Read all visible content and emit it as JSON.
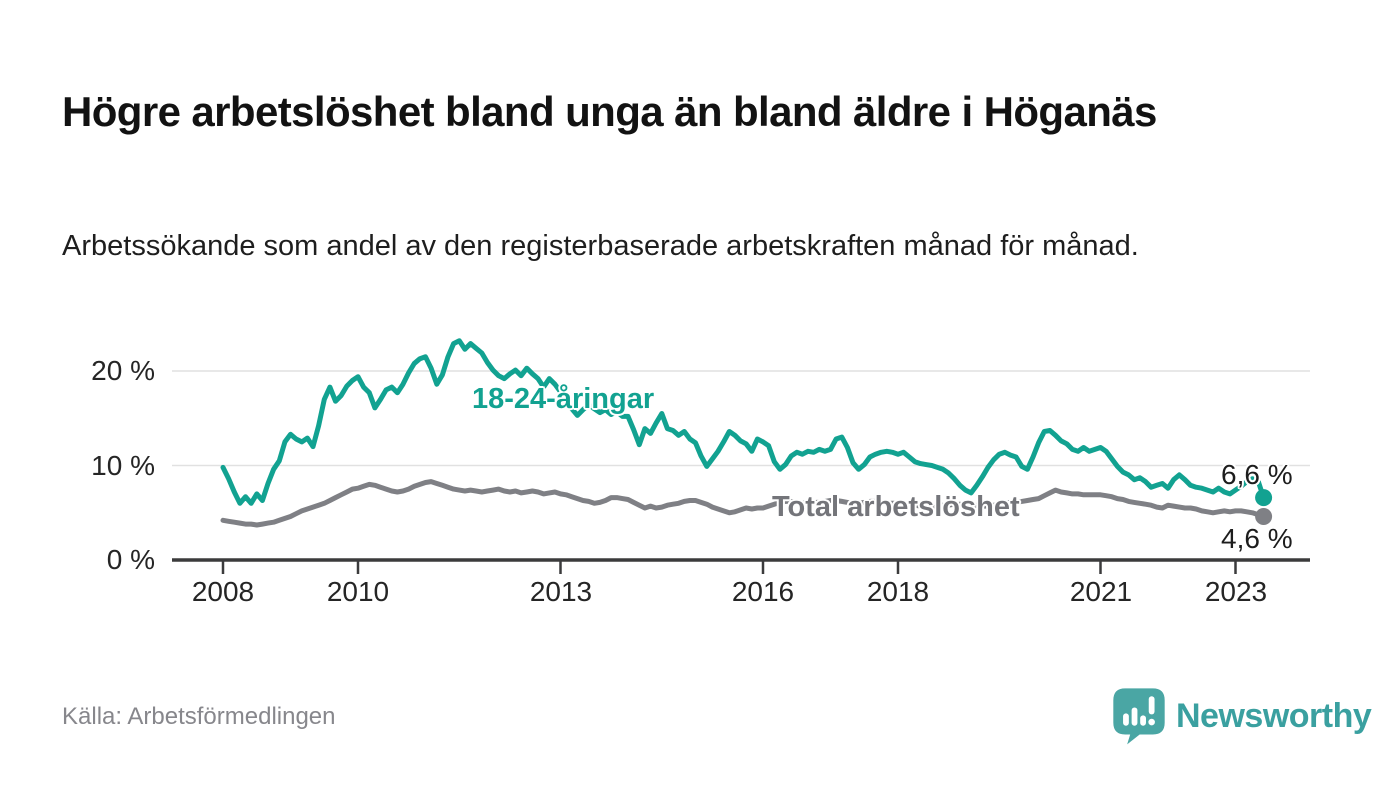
{
  "page": {
    "title": "Högre arbetslöshet bland unga än bland äldre i Höganäs",
    "subtitle": "Arbetssökande som andel av den registerbaserade arbetskraften månad för månad.",
    "source": "Källa: Arbetsförmedlingen",
    "brand": {
      "name": "Newsworthy",
      "icon": "speech-bubble-bar-chart-icon",
      "text_color": "#3aa0a0",
      "icon_color": "#4aa6a4"
    }
  },
  "chart_data": {
    "type": "line",
    "title": "Högre arbetslöshet bland unga än bland äldre i Höganäs",
    "subtitle": "Arbetssökande som andel av den registerbaserade arbetskraften månad för månad.",
    "x_unit": "month",
    "x_start": "2008-01",
    "x_end": "2023-06",
    "y_unit": "%",
    "ylim": [
      0,
      24
    ],
    "grid": "horizontal",
    "legend_position": "inline-labels",
    "y_ticks": [
      {
        "value": 0,
        "label": "0 %"
      },
      {
        "value": 10,
        "label": "10 %"
      },
      {
        "value": 20,
        "label": "20 %"
      }
    ],
    "x_ticks": [
      {
        "year": 2008,
        "label": "2008"
      },
      {
        "year": 2010,
        "label": "2010"
      },
      {
        "year": 2013,
        "label": "2013"
      },
      {
        "year": 2016,
        "label": "2016"
      },
      {
        "year": 2018,
        "label": "2018"
      },
      {
        "year": 2021,
        "label": "2021"
      },
      {
        "year": 2023,
        "label": "2023"
      }
    ],
    "series": [
      {
        "name": "18-24-åringar",
        "color": "#12a291",
        "end_value": 6.6,
        "end_value_label": "6,6 %",
        "values": [
          9.8,
          8.6,
          7.2,
          6.0,
          6.7,
          6.0,
          7.0,
          6.3,
          8.1,
          9.6,
          10.5,
          12.5,
          13.3,
          12.8,
          12.5,
          12.9,
          12.0,
          14.2,
          17.0,
          18.3,
          16.8,
          17.4,
          18.4,
          19.0,
          19.4,
          18.3,
          17.7,
          16.1,
          17.0,
          18.0,
          18.3,
          17.7,
          18.6,
          19.8,
          20.8,
          21.3,
          21.5,
          20.3,
          18.6,
          19.6,
          21.5,
          22.9,
          23.2,
          22.3,
          22.9,
          22.4,
          21.9,
          20.9,
          20.1,
          19.5,
          19.2,
          19.7,
          20.1,
          19.5,
          20.3,
          19.7,
          19.2,
          18.3,
          19.2,
          18.6,
          17.8,
          16.9,
          16.0,
          15.3,
          15.9,
          16.4,
          16.0,
          15.6,
          15.9,
          15.4,
          15.7,
          15.2,
          15.2,
          13.8,
          12.2,
          13.9,
          13.4,
          14.5,
          15.5,
          13.9,
          13.7,
          13.2,
          13.6,
          12.8,
          12.4,
          11.0,
          9.9,
          10.7,
          11.5,
          12.5,
          13.6,
          13.2,
          12.6,
          12.3,
          11.5,
          12.8,
          12.5,
          12.1,
          10.4,
          9.6,
          10.1,
          11.0,
          11.4,
          11.2,
          11.5,
          11.4,
          11.7,
          11.5,
          11.7,
          12.8,
          13.0,
          11.9,
          10.3,
          9.6,
          10.1,
          10.9,
          11.2,
          11.4,
          11.5,
          11.4,
          11.2,
          11.4,
          10.9,
          10.4,
          10.2,
          10.1,
          10.0,
          9.8,
          9.6,
          9.2,
          8.6,
          7.9,
          7.4,
          7.1,
          7.9,
          8.8,
          9.8,
          10.6,
          11.2,
          11.4,
          11.1,
          10.9,
          9.9,
          9.6,
          10.9,
          12.4,
          13.6,
          13.7,
          13.2,
          12.6,
          12.3,
          11.7,
          11.5,
          11.9,
          11.5,
          11.7,
          11.9,
          11.5,
          10.7,
          9.9,
          9.3,
          9.0,
          8.5,
          8.7,
          8.3,
          7.7,
          7.9,
          8.1,
          7.6,
          8.5,
          9.0,
          8.5,
          7.9,
          7.7,
          7.6,
          7.4,
          7.2,
          7.6,
          7.2,
          7.0,
          7.4,
          7.8,
          8.3,
          8.6,
          8.4,
          6.6
        ]
      },
      {
        "name": "Total arbetslöshet",
        "color": "#7f8085",
        "end_value": 4.6,
        "end_value_label": "4,6 %",
        "values": [
          4.2,
          4.1,
          4.0,
          3.9,
          3.8,
          3.8,
          3.7,
          3.8,
          3.9,
          4.0,
          4.2,
          4.4,
          4.6,
          4.9,
          5.2,
          5.4,
          5.6,
          5.8,
          6.0,
          6.3,
          6.6,
          6.9,
          7.2,
          7.5,
          7.6,
          7.8,
          8.0,
          7.9,
          7.7,
          7.5,
          7.3,
          7.2,
          7.3,
          7.5,
          7.8,
          8.0,
          8.2,
          8.3,
          8.1,
          7.9,
          7.7,
          7.5,
          7.4,
          7.3,
          7.4,
          7.3,
          7.2,
          7.3,
          7.4,
          7.5,
          7.3,
          7.2,
          7.3,
          7.1,
          7.2,
          7.3,
          7.2,
          7.0,
          7.1,
          7.2,
          7.0,
          6.9,
          6.7,
          6.5,
          6.3,
          6.2,
          6.0,
          6.1,
          6.3,
          6.6,
          6.6,
          6.5,
          6.4,
          6.1,
          5.8,
          5.5,
          5.7,
          5.5,
          5.6,
          5.8,
          5.9,
          6.0,
          6.2,
          6.3,
          6.3,
          6.1,
          5.9,
          5.6,
          5.4,
          5.2,
          5.0,
          5.1,
          5.3,
          5.5,
          5.4,
          5.5,
          5.5,
          5.7,
          5.9,
          6.1,
          6.2,
          6.2,
          6.1,
          6.0,
          6.0,
          6.1,
          6.1,
          6.2,
          6.3,
          6.3,
          6.2,
          6.1,
          6.0,
          6.0,
          6.1,
          6.2,
          6.2,
          6.1,
          6.0,
          6.0,
          6.0,
          5.9,
          5.8,
          5.8,
          5.7,
          5.6,
          5.6,
          5.7,
          5.8,
          5.8,
          5.9,
          5.9,
          5.9,
          5.8,
          5.8,
          5.7,
          5.7,
          5.8,
          5.9,
          6.0,
          6.1,
          6.1,
          6.2,
          6.3,
          6.4,
          6.5,
          6.8,
          7.1,
          7.4,
          7.2,
          7.1,
          7.0,
          7.0,
          6.9,
          6.9,
          6.9,
          6.9,
          6.8,
          6.7,
          6.5,
          6.4,
          6.2,
          6.1,
          6.0,
          5.9,
          5.8,
          5.6,
          5.5,
          5.8,
          5.7,
          5.6,
          5.5,
          5.5,
          5.4,
          5.2,
          5.1,
          5.0,
          5.1,
          5.2,
          5.1,
          5.2,
          5.2,
          5.1,
          5.0,
          4.8,
          4.6
        ]
      }
    ]
  }
}
